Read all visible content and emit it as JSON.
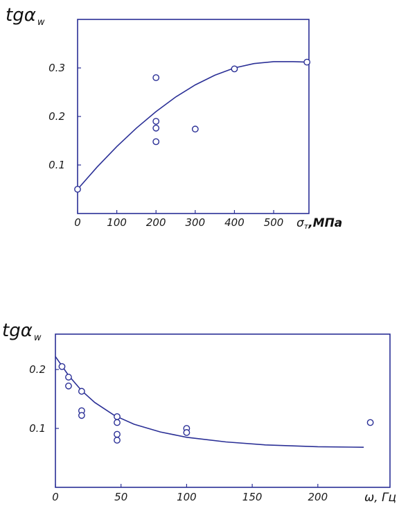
{
  "colors": {
    "line": "#2a2f96",
    "frame": "#2a2f96",
    "text": "#111111"
  },
  "chart_data": [
    {
      "type": "scatter",
      "ylabel": {
        "main": "tgα",
        "sub": "w"
      },
      "xlabel": "σ",
      "xlabel_sub": "т",
      "xlabel_unit": ",МПа",
      "xlim": [
        0,
        590
      ],
      "ylim": [
        0,
        0.4
      ],
      "x_ticks": [
        {
          "value": 0,
          "label": "0"
        },
        {
          "value": 100,
          "label": "100"
        },
        {
          "value": 200,
          "label": "200"
        },
        {
          "value": 300,
          "label": "300"
        },
        {
          "value": 400,
          "label": "400"
        },
        {
          "value": 500,
          "label": "500"
        }
      ],
      "y_ticks": [
        {
          "value": 0.1,
          "label": "0.1"
        },
        {
          "value": 0.2,
          "label": "0.2"
        },
        {
          "value": 0.3,
          "label": "0.3"
        }
      ],
      "points": [
        {
          "x": 0,
          "y": 0.05
        },
        {
          "x": 200,
          "y": 0.28
        },
        {
          "x": 200,
          "y": 0.19
        },
        {
          "x": 200,
          "y": 0.176
        },
        {
          "x": 200,
          "y": 0.148
        },
        {
          "x": 300,
          "y": 0.174
        },
        {
          "x": 400,
          "y": 0.298
        },
        {
          "x": 585,
          "y": 0.312
        }
      ],
      "fit_curve": [
        {
          "x": 0,
          "y": 0.05
        },
        {
          "x": 50,
          "y": 0.096
        },
        {
          "x": 100,
          "y": 0.138
        },
        {
          "x": 150,
          "y": 0.176
        },
        {
          "x": 200,
          "y": 0.21
        },
        {
          "x": 250,
          "y": 0.24
        },
        {
          "x": 300,
          "y": 0.265
        },
        {
          "x": 350,
          "y": 0.285
        },
        {
          "x": 400,
          "y": 0.3
        },
        {
          "x": 450,
          "y": 0.309
        },
        {
          "x": 500,
          "y": 0.313
        },
        {
          "x": 550,
          "y": 0.313
        },
        {
          "x": 585,
          "y": 0.312
        }
      ]
    },
    {
      "type": "scatter",
      "ylabel": {
        "main": "tgα",
        "sub": "w"
      },
      "xlabel": "ω, Гц",
      "xlim": [
        0,
        255
      ],
      "ylim": [
        0,
        0.26
      ],
      "x_ticks": [
        {
          "value": 0,
          "label": "0"
        },
        {
          "value": 50,
          "label": "50"
        },
        {
          "value": 100,
          "label": "100"
        },
        {
          "value": 150,
          "label": "150"
        },
        {
          "value": 200,
          "label": "200"
        }
      ],
      "y_ticks": [
        {
          "value": 0.1,
          "label": "0.1"
        },
        {
          "value": 0.2,
          "label": "0.2"
        }
      ],
      "points": [
        {
          "x": 5,
          "y": 0.205
        },
        {
          "x": 10,
          "y": 0.187
        },
        {
          "x": 10,
          "y": 0.172
        },
        {
          "x": 20,
          "y": 0.163
        },
        {
          "x": 20,
          "y": 0.13
        },
        {
          "x": 20,
          "y": 0.122
        },
        {
          "x": 47,
          "y": 0.12
        },
        {
          "x": 47,
          "y": 0.11
        },
        {
          "x": 47,
          "y": 0.09
        },
        {
          "x": 47,
          "y": 0.08
        },
        {
          "x": 100,
          "y": 0.1
        },
        {
          "x": 100,
          "y": 0.093
        },
        {
          "x": 240,
          "y": 0.11
        }
      ],
      "fit_curve": [
        {
          "x": 0,
          "y": 0.222
        },
        {
          "x": 10,
          "y": 0.19
        },
        {
          "x": 20,
          "y": 0.164
        },
        {
          "x": 30,
          "y": 0.144
        },
        {
          "x": 45,
          "y": 0.122
        },
        {
          "x": 60,
          "y": 0.107
        },
        {
          "x": 80,
          "y": 0.094
        },
        {
          "x": 100,
          "y": 0.085
        },
        {
          "x": 130,
          "y": 0.077
        },
        {
          "x": 160,
          "y": 0.072
        },
        {
          "x": 200,
          "y": 0.069
        },
        {
          "x": 235,
          "y": 0.068
        }
      ]
    }
  ]
}
